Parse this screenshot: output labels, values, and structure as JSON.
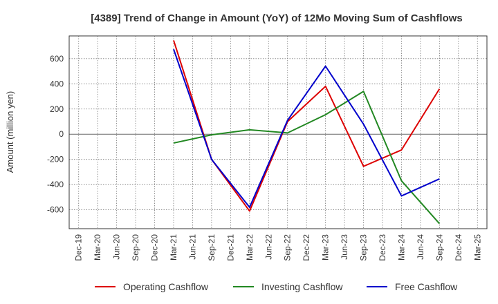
{
  "chart_data": {
    "type": "line",
    "title": "[4389]  Trend of Change in Amount (YoY) of 12Mo Moving Sum of Cashflows",
    "xlabel": "",
    "ylabel": "Amount (million yen)",
    "ylim": [
      -750,
      780
    ],
    "yticks": [
      600,
      400,
      200,
      0,
      -200,
      -400,
      -600
    ],
    "ytick_labels": [
      "600",
      "400",
      "200",
      "0",
      "-200",
      "-400",
      "-600"
    ],
    "categories": [
      "Dec-19",
      "Mar-20",
      "Jun-20",
      "Sep-20",
      "Dec-20",
      "Mar-21",
      "Jun-21",
      "Sep-21",
      "Dec-21",
      "Mar-22",
      "Jun-22",
      "Sep-22",
      "Dec-22",
      "Mar-23",
      "Jun-23",
      "Sep-23",
      "Dec-23",
      "Mar-24",
      "Jun-24",
      "Sep-24",
      "Dec-24",
      "Mar-25"
    ],
    "grid": true,
    "legend_position": "bottom",
    "series": [
      {
        "name": "Operating Cashflow",
        "color": "#dd0000",
        "points": [
          [
            "Mar-21",
            745
          ],
          [
            "Sep-21",
            -200
          ],
          [
            "Mar-22",
            -610
          ],
          [
            "Sep-22",
            100
          ],
          [
            "Mar-23",
            380
          ],
          [
            "Sep-23",
            -255
          ],
          [
            "Mar-24",
            -125
          ],
          [
            "Sep-24",
            360
          ]
        ]
      },
      {
        "name": "Investing Cashflow",
        "color": "#228822",
        "points": [
          [
            "Mar-21",
            -70
          ],
          [
            "Sep-21",
            -5
          ],
          [
            "Mar-22",
            35
          ],
          [
            "Sep-22",
            10
          ],
          [
            "Mar-23",
            155
          ],
          [
            "Sep-23",
            340
          ],
          [
            "Mar-24",
            -370
          ],
          [
            "Sep-24",
            -710
          ]
        ]
      },
      {
        "name": "Free Cashflow",
        "color": "#0000cc",
        "points": [
          [
            "Mar-21",
            675
          ],
          [
            "Sep-21",
            -200
          ],
          [
            "Mar-22",
            -580
          ],
          [
            "Sep-22",
            110
          ],
          [
            "Mar-23",
            540
          ],
          [
            "Sep-23",
            80
          ],
          [
            "Mar-24",
            -490
          ],
          [
            "Sep-24",
            -355
          ]
        ]
      }
    ]
  }
}
